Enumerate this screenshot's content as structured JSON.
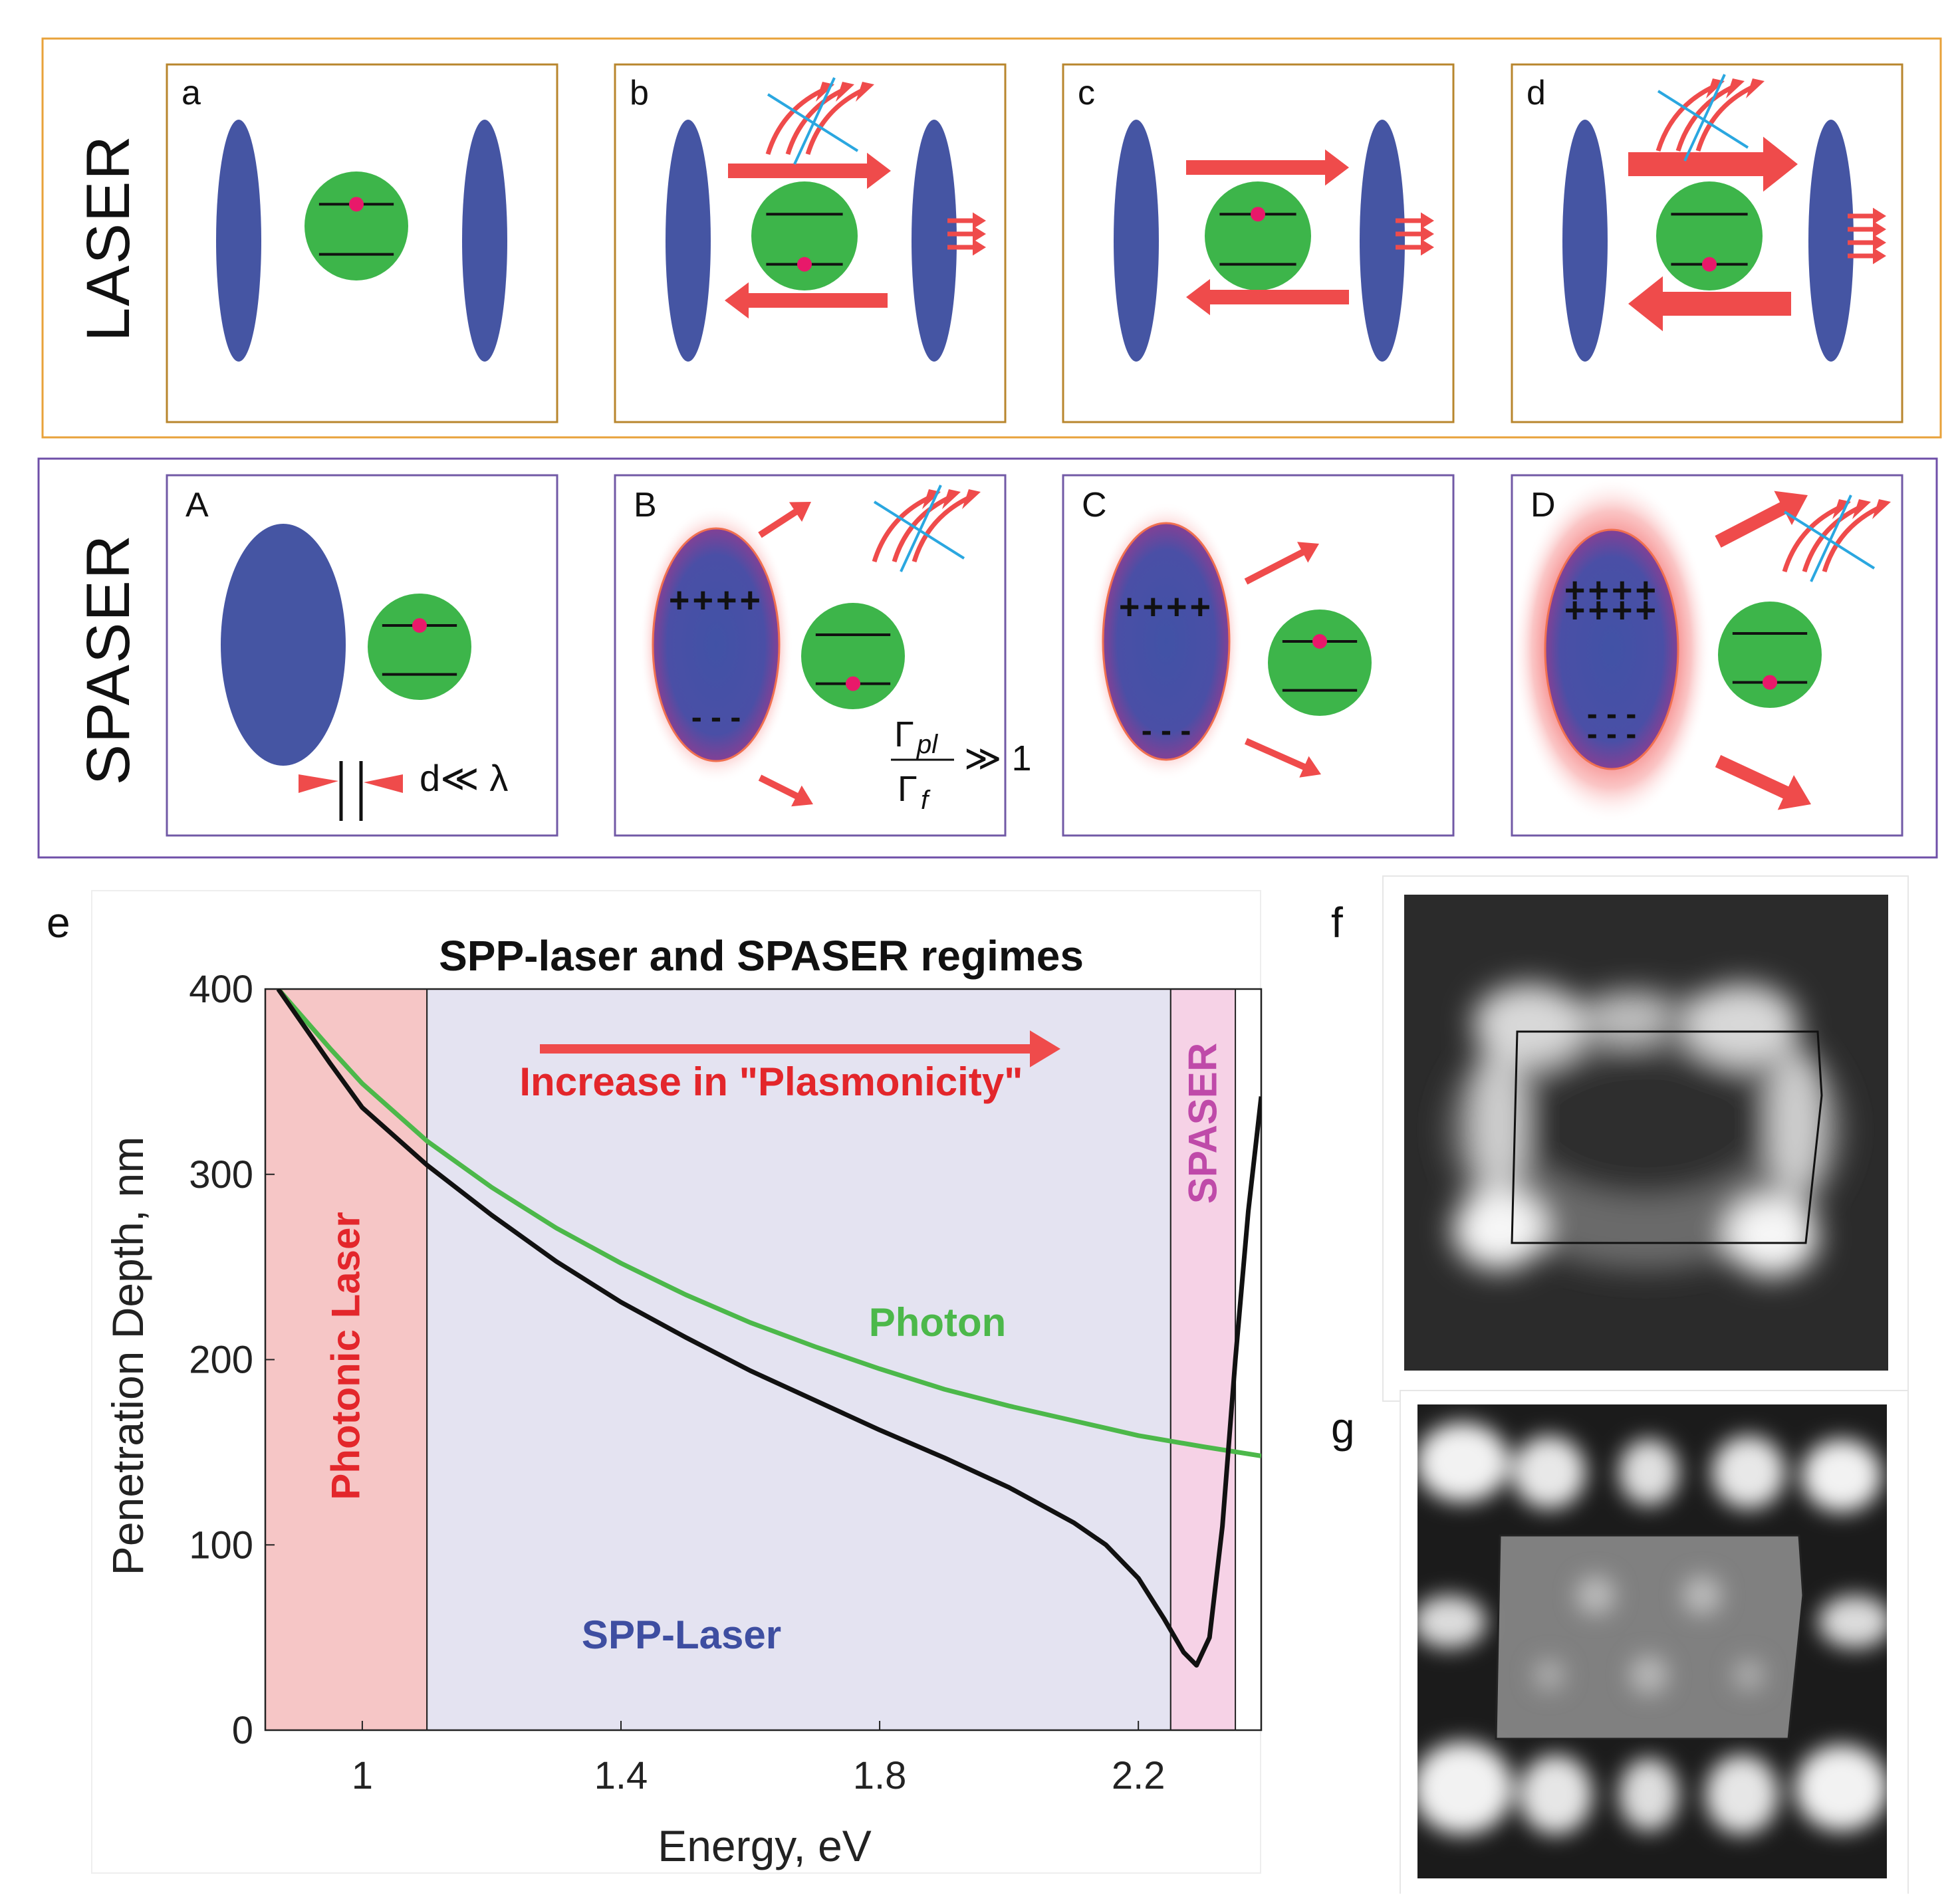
{
  "colors": {
    "laser_border": "#E8A23A",
    "spaser_border": "#6F4FA8",
    "mirror": "#4555A3",
    "gain": "#3DB54A",
    "arrow": "#EF4B4B",
    "electron": "#E8196A",
    "cross": "#2AA7E0",
    "photonic_band": "#F6C6C6",
    "spp_band": "#E4E3F1",
    "spaser_band": "#F6D2E6",
    "photon_curve": "#4CB84A",
    "spp_curve": "#111111",
    "photonic_text": "#E3262B",
    "spp_text": "#3E4EA1",
    "spaser_text": "#BF4AA9",
    "increase_text": "#E3262B"
  },
  "laser": {
    "row_label": "LASER",
    "panels": [
      {
        "label": "a"
      },
      {
        "label": "b"
      },
      {
        "label": "c"
      },
      {
        "label": "d"
      }
    ]
  },
  "spaser": {
    "row_label": "SPASER",
    "panels": [
      {
        "label": "A"
      },
      {
        "label": "B"
      },
      {
        "label": "C"
      },
      {
        "label": "D"
      }
    ],
    "size_annotation": "d≪ λ",
    "gamma_num": "Γ",
    "gamma_num_sub": "pl",
    "gamma_den": "Γ",
    "gamma_den_sub": "f",
    "gamma_rel": "≫ 1",
    "plus_signs": "++++",
    "minus_signs": "- - -"
  },
  "chart_data": {
    "panel_label": "e",
    "type": "line",
    "title": "SPP-laser and SPASER regimes",
    "xlabel": "Energy, eV",
    "ylabel": "Penetration Depth, nm",
    "xlim": [
      0.85,
      2.39
    ],
    "ylim": [
      0,
      400
    ],
    "xticks": [
      1,
      1.4,
      1.8,
      2.2
    ],
    "xtick_labels": [
      "1",
      "1.4",
      "1.8",
      "2.2"
    ],
    "yticks": [
      0,
      100,
      200,
      300,
      400
    ],
    "ytick_labels": [
      "0",
      "100",
      "200",
      "300",
      "400"
    ],
    "regions": [
      {
        "name": "Photonic Laser",
        "x_range": [
          0.85,
          1.1
        ]
      },
      {
        "name": "SPP-Laser",
        "x_range": [
          1.1,
          2.25
        ]
      },
      {
        "name": "SPASER",
        "x_range": [
          2.25,
          2.35
        ]
      }
    ],
    "annotation": "Increase in \"Plasmonicity\"",
    "series": [
      {
        "name": "Photon",
        "x": [
          0.87,
          0.95,
          1.0,
          1.1,
          1.2,
          1.3,
          1.4,
          1.5,
          1.6,
          1.7,
          1.8,
          1.9,
          2.0,
          2.1,
          2.2,
          2.3,
          2.39
        ],
        "y": [
          400,
          368,
          349,
          318,
          293,
          271,
          252,
          235,
          220,
          207,
          195,
          184,
          175,
          167,
          159,
          153,
          148
        ]
      },
      {
        "name": "SPP",
        "x": [
          0.87,
          0.95,
          1.0,
          1.1,
          1.2,
          1.3,
          1.4,
          1.5,
          1.6,
          1.7,
          1.8,
          1.9,
          2.0,
          2.1,
          2.15,
          2.2,
          2.24,
          2.27,
          2.29,
          2.31,
          2.33,
          2.35,
          2.37,
          2.39
        ],
        "y": [
          400,
          360,
          336,
          305,
          278,
          253,
          231,
          212,
          194,
          178,
          162,
          147,
          131,
          112,
          100,
          82,
          60,
          42,
          35,
          50,
          110,
          200,
          280,
          342
        ]
      }
    ]
  },
  "inset_f": {
    "label": "f"
  },
  "inset_g": {
    "label": "g"
  }
}
